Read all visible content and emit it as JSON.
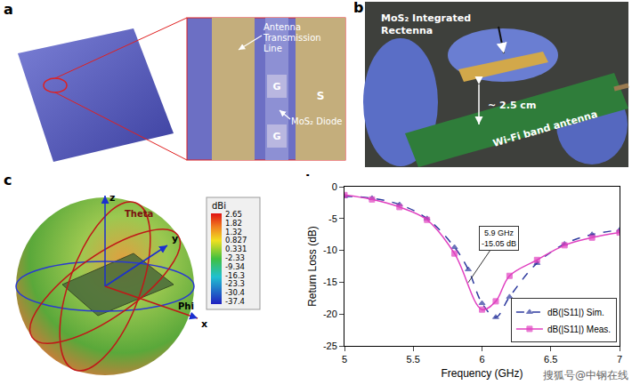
{
  "panels": {
    "a": {
      "letter": "a",
      "labels": {
        "line": "Antenna Transmission Line",
        "gate_top": "G",
        "gate_bottom": "G",
        "source": "S",
        "diode": "MoS₂ Diode"
      }
    },
    "b": {
      "letter": "b",
      "labels": {
        "rectenna": "MoS₂ Integrated Rectenna",
        "size": "~ 2.5 cm",
        "antenna": "Wi-Fi band antenna"
      }
    },
    "c": {
      "letter": "c",
      "axes": [
        "z",
        "y",
        "x"
      ],
      "angles": [
        "Theta",
        "Phi"
      ],
      "colorbar": {
        "title": "dBi",
        "ticks": [
          2.65,
          1.82,
          1.32,
          0.827,
          0.331,
          -2.33,
          -9.34,
          -16.3,
          -23.3,
          -30.4,
          -37.4
        ]
      }
    },
    "d": {
      "letter": "d"
    }
  },
  "chart_data": {
    "type": "line",
    "x_title": "Frequency (GHz)",
    "y_title": "Return Loss (dB)",
    "xlim": [
      5,
      7
    ],
    "xticks": [
      5,
      5.5,
      6,
      6.5,
      7
    ],
    "ylim": [
      -25,
      0
    ],
    "yticks": [
      0,
      -5,
      -10,
      -15,
      -20,
      -25
    ],
    "grid": false,
    "legend": "lower right",
    "series": [
      {
        "name": "dB(|S11|) Sim.",
        "color": "#2e3a9e",
        "line_style": "dashed",
        "marker": "triangle",
        "x": [
          5.0,
          5.2,
          5.4,
          5.6,
          5.8,
          5.9,
          6.0,
          6.1,
          6.2,
          6.4,
          6.6,
          6.8,
          7.0
        ],
        "values": [
          -1.5,
          -1.8,
          -2.8,
          -5.0,
          -9.5,
          -13.0,
          -18.3,
          -20.5,
          -17.3,
          -12.0,
          -9.0,
          -7.5,
          -6.8
        ]
      },
      {
        "name": "dB(|S11|) Meas.",
        "color": "#e040c0",
        "line_style": "solid",
        "marker": "square",
        "x": [
          5.0,
          5.2,
          5.4,
          5.6,
          5.8,
          6.0,
          6.1,
          6.2,
          6.4,
          6.6,
          6.8,
          7.0
        ],
        "values": [
          -1.3,
          -2.0,
          -3.2,
          -5.2,
          -10.5,
          -19.3,
          -18.0,
          -14.0,
          -11.5,
          -9.2,
          -8.0,
          -7.2
        ]
      }
    ],
    "annotations": [
      {
        "lines": [
          "5.9 GHz",
          "-15.05 dB"
        ],
        "x": 5.9,
        "y": -15.05
      }
    ]
  },
  "watermark": "搜狐号@中钢在线"
}
